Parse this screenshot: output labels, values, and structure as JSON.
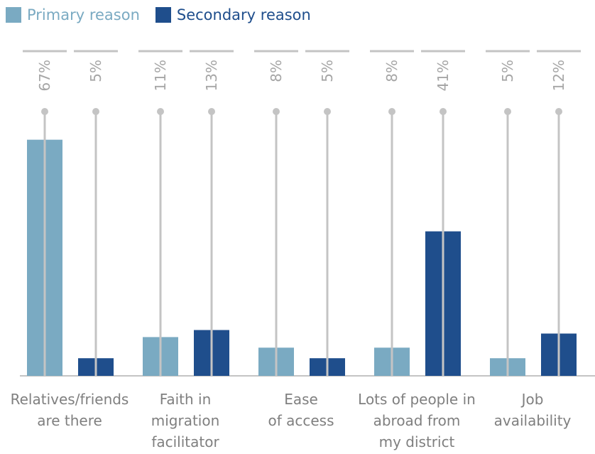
{
  "legend": {
    "primary_label": "Primary reason",
    "secondary_label": "Secondary reason"
  },
  "colors": {
    "primary": "#7aaac2",
    "secondary": "#1f4e8c",
    "primary_text": "#7aaac2",
    "secondary_text": "#1f4e8c",
    "grid_line": "#c4c4c4",
    "value_label": "#a6a6a6",
    "axis_label": "#7f7f7f"
  },
  "chart_data": {
    "type": "bar",
    "title": "",
    "xlabel": "",
    "ylabel": "",
    "ylim": [
      0,
      76
    ],
    "categories": [
      [
        "Relatives/friends",
        "are there"
      ],
      [
        "Faith in",
        "migration",
        "facilitator"
      ],
      [
        "Ease",
        "of access"
      ],
      [
        "Lots of people in",
        "abroad from",
        "my district"
      ],
      [
        "Job",
        "availability"
      ]
    ],
    "series": [
      {
        "name": "Primary reason",
        "values": [
          67,
          11,
          8,
          8,
          5
        ],
        "labels": [
          "67%",
          "11%",
          "8%",
          "8%",
          "5%"
        ]
      },
      {
        "name": "Secondary reason",
        "values": [
          5,
          13,
          5,
          41,
          12
        ],
        "labels": [
          "5%",
          "13%",
          "5%",
          "41%",
          "12%"
        ]
      }
    ],
    "grid": false,
    "legend_position": "top-left"
  }
}
